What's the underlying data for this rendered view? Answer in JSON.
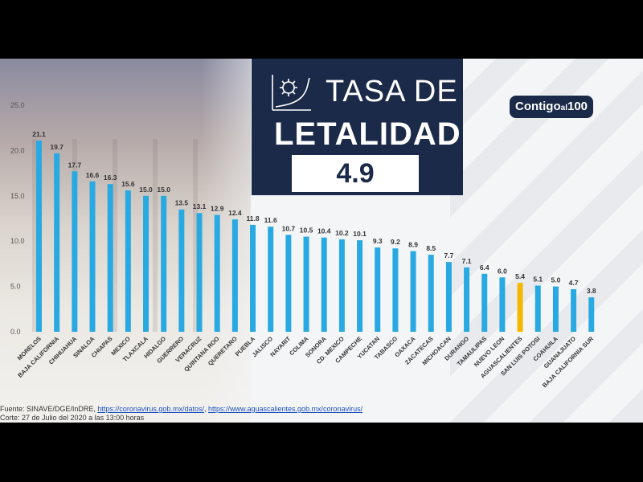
{
  "title_line1": "TASA DE",
  "title_line2": "LETALIDAD",
  "headline_value": "4.9",
  "brand": {
    "main": "Contigo",
    "small": "al",
    "num": "100"
  },
  "footer": {
    "prefix": "Fuente: SINAVE/DGE/InDRE, ",
    "link1": "https://coronavirus.gob.mx/datos/",
    "sep": ", ",
    "link2": "https://www.aguascalientes.gob.mx/coronavirus/",
    "line2": "Corte: 27 de Julio del 2020 a las 13:00 horas"
  },
  "colors": {
    "bar": "#29a9e1",
    "highlight": "#f5b800",
    "navy": "#1b2a48"
  },
  "chart_data": {
    "type": "bar",
    "categories": [
      "MORELOS",
      "BAJA CALIFORNIA",
      "CHIHUAHUA",
      "SINALOA",
      "CHIAPAS",
      "MEXICO",
      "TLAXCALA",
      "HIDALGO",
      "GUERRERO",
      "VERACRUZ",
      "QUINTANA ROO",
      "QUERETARO",
      "PUEBLA",
      "JALISCO",
      "NAYARIT",
      "COLIMA",
      "SONORA",
      "CD. MEXICO",
      "CAMPECHE",
      "YUCATAN",
      "TABASCO",
      "OAXACA",
      "ZACATECAS",
      "MICHOACAN",
      "DURANGO",
      "TAMAULIPAS",
      "NUEVO LEON",
      "AGUASCALIENTES",
      "SAN LUIS POTOSI",
      "COAHUILA",
      "GUANAJUATO",
      "BAJA CALIFORNIA SUR"
    ],
    "values": [
      21.1,
      19.7,
      17.7,
      16.6,
      16.3,
      15.6,
      15.0,
      15.0,
      13.5,
      13.1,
      12.9,
      12.4,
      11.8,
      11.6,
      10.7,
      10.5,
      10.4,
      10.2,
      10.1,
      9.3,
      9.2,
      8.9,
      8.5,
      7.7,
      7.1,
      6.4,
      6.0,
      5.4,
      5.1,
      5.0,
      4.7,
      3.8
    ],
    "value_labels": [
      "21.1",
      "19.7",
      "17.7",
      "16.6",
      "16.3",
      "15.6",
      "15.0",
      "15.0",
      "13.5",
      "13.1",
      "12.9",
      "12.4",
      "11.8",
      "11.6",
      "10.7",
      "10.5",
      "10.4",
      "10.2",
      "10.1",
      "9.3",
      "9.2",
      "8.9",
      "8.5",
      "7.7",
      "7.1",
      "6.4",
      "6.0",
      "5.4",
      "5.1",
      "5.0",
      "4.7",
      "3.8"
    ],
    "highlight_category": "AGUASCALIENTES",
    "yticks": [
      "0.0",
      "5.0",
      "10.0",
      "15.0",
      "20.0",
      "25.0"
    ],
    "ylim": [
      0,
      25
    ],
    "title": "TASA DE LETALIDAD",
    "xlabel": "",
    "ylabel": "",
    "grid": false
  }
}
